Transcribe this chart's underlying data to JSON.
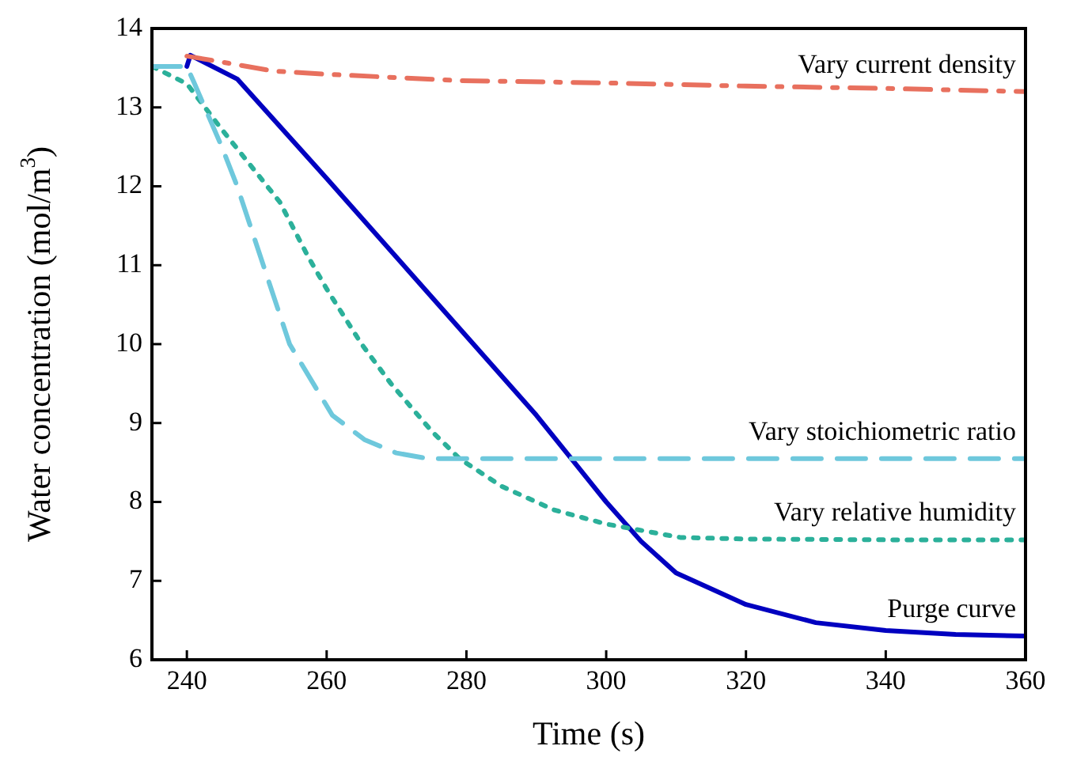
{
  "chart_data": {
    "type": "line",
    "xlabel": "Time (s)",
    "ylabel": "Water concentration (mol/m$^{3}$)",
    "xlim": [
      235,
      360
    ],
    "xticks": [
      240,
      260,
      280,
      300,
      320,
      340,
      360
    ],
    "ylim": [
      6,
      14
    ],
    "yticks": [
      6,
      7,
      8,
      9,
      10,
      11,
      12,
      13,
      14
    ],
    "grid": false,
    "legend": false,
    "marker": "none",
    "series": [
      {
        "name": "Vary current density",
        "color": "#e8705e",
        "line_style": "dashdot",
        "x": [
          240,
          252.5,
          260,
          279,
          300,
          320,
          340,
          360
        ],
        "values": [
          13.65,
          13.46,
          13.42,
          13.34,
          13.31,
          13.27,
          13.24,
          13.2
        ]
      },
      {
        "name": "Vary stoichiometric ratio",
        "color": "#6ec8dc",
        "line_style": "dashed",
        "x": [
          235,
          240,
          241,
          245,
          247.2,
          250,
          254.7,
          260.8,
          265.4,
          270,
          274.4,
          280,
          360
        ],
        "values": [
          13.52,
          13.52,
          13.32,
          12.5,
          12.0,
          11.25,
          10.0,
          9.1,
          8.79,
          8.62,
          8.55,
          8.55,
          8.55
        ]
      },
      {
        "name": "Vary relative humidity",
        "color": "#2bb09a",
        "line_style": "dotted",
        "x": [
          235,
          240,
          245,
          248.8,
          253.3,
          257.4,
          260,
          265,
          269.2,
          275,
          279,
          285,
          292.5,
          300,
          310.6,
          320,
          340,
          360
        ],
        "values": [
          13.52,
          13.3,
          12.72,
          12.3,
          11.8,
          11.1,
          10.7,
          10.0,
          9.5,
          8.9,
          8.55,
          8.2,
          7.9,
          7.72,
          7.55,
          7.53,
          7.52,
          7.52
        ]
      },
      {
        "name": "Purge curve",
        "color": "#0000c0",
        "line_style": "solid",
        "x": [
          240,
          240.5,
          247.2,
          260,
          271.5,
          280,
          290,
          295,
          300,
          305,
          310,
          320,
          330,
          340,
          350,
          360
        ],
        "values": [
          13.52,
          13.66,
          13.36,
          12.1,
          10.95,
          10.1,
          9.1,
          8.55,
          8.0,
          7.5,
          7.1,
          6.7,
          6.47,
          6.37,
          6.32,
          6.3
        ]
      }
    ]
  }
}
